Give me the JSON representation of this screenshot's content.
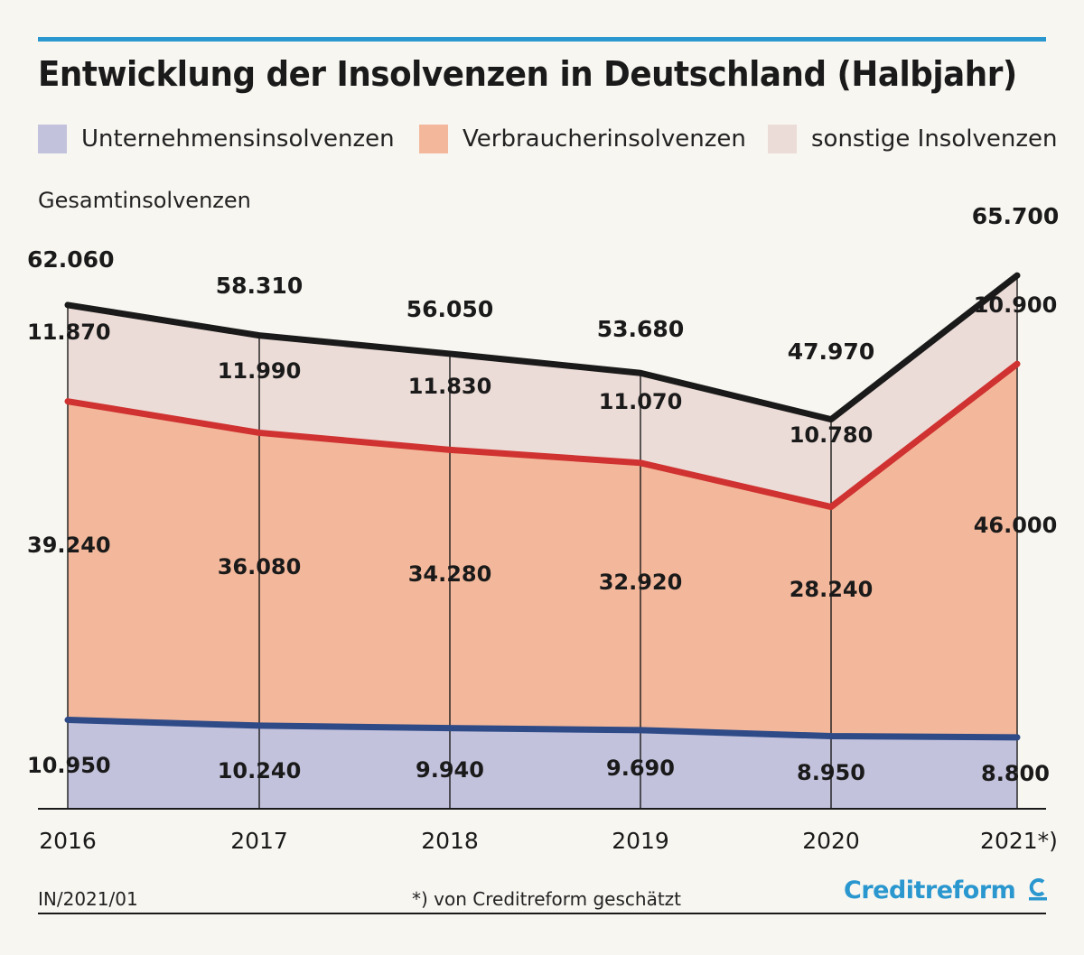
{
  "header": {
    "title": "Entwicklung der Insolvenzen in Deutschland (Halbjahr)"
  },
  "legend": [
    {
      "label": "Unternehmensinsolvenzen",
      "color": "#c3c2dd"
    },
    {
      "label": "Verbraucherinsolvenzen",
      "color": "#f3b89b"
    },
    {
      "label": "sonstige Insolvenzen",
      "color": "#ecdcd7"
    }
  ],
  "total_label": "Gesamtinsolvenzen",
  "chart_data": {
    "type": "area",
    "categories": [
      "2016",
      "2017",
      "2018",
      "2019",
      "2020",
      "2021*)"
    ],
    "series": [
      {
        "name": "Unternehmensinsolvenzen",
        "values": [
          10950,
          10240,
          9940,
          9690,
          8950,
          8800
        ],
        "labels": [
          "10.950",
          "10.240",
          "9.940",
          "9.690",
          "8.950",
          "8.800"
        ],
        "fill": "#c3c2dd",
        "line": "#2e4a87"
      },
      {
        "name": "Verbraucherinsolvenzen",
        "values": [
          39240,
          36080,
          34280,
          32920,
          28240,
          46000
        ],
        "labels": [
          "39.240",
          "36.080",
          "34.280",
          "32.920",
          "28.240",
          "46.000"
        ],
        "fill": "#f3b89b",
        "line": "#cf3230"
      },
      {
        "name": "sonstige Insolvenzen",
        "values": [
          11870,
          11990,
          11830,
          11070,
          10780,
          10900
        ],
        "labels": [
          "11.870",
          "11.990",
          "11.830",
          "11.070",
          "10.780",
          "10.900"
        ],
        "fill": "#ecdcd7",
        "line": "#1a1a1a"
      }
    ],
    "totals": {
      "name": "Gesamtinsolvenzen",
      "values": [
        62060,
        58310,
        56050,
        53680,
        47970,
        65700
      ],
      "labels": [
        "62.060",
        "58.310",
        "56.050",
        "53.680",
        "47.970",
        "65.700"
      ]
    },
    "ylim": [
      0,
      70000
    ],
    "grid": false
  },
  "footer": {
    "code": "IN/2021/01",
    "note": "*) von Creditreform geschätzt",
    "brand": "Creditreform",
    "brand_color": "#2a97cf"
  }
}
